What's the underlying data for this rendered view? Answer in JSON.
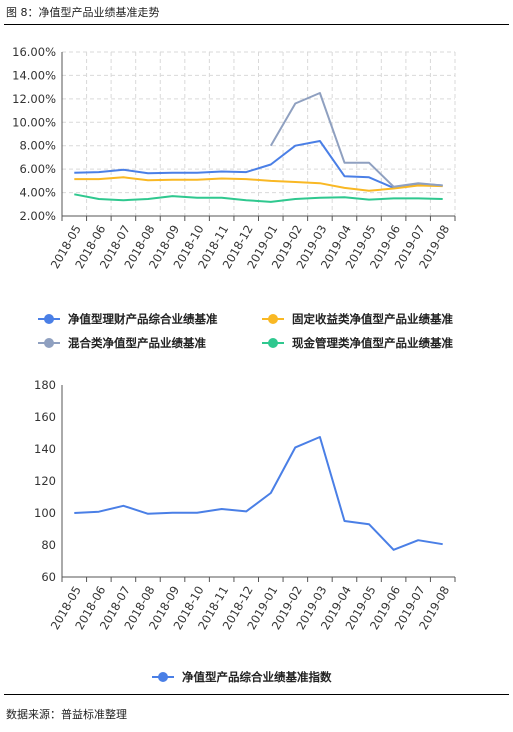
{
  "figure": {
    "title": "图 8：净值型产品业绩基准走势",
    "source": "数据来源：普益标准整理"
  },
  "chart_data": [
    {
      "type": "line",
      "categories": [
        "2018-05",
        "2018-06",
        "2018-07",
        "2018-08",
        "2018-09",
        "2018-10",
        "2018-11",
        "2018-12",
        "2019-01",
        "2019-02",
        "2019-03",
        "2019-04",
        "2019-05",
        "2019-06",
        "2019-07",
        "2019-08"
      ],
      "ylim": [
        2,
        16
      ],
      "yticks": [
        "2.00%",
        "4.00%",
        "6.00%",
        "8.00%",
        "10.00%",
        "12.00%",
        "14.00%",
        "16.00%"
      ],
      "ytick_values": [
        2,
        4,
        6,
        8,
        10,
        12,
        14,
        16
      ],
      "grid": true,
      "legend_position": "bottom",
      "series": [
        {
          "name": "净值型理财产品综合业绩基准",
          "color": "#4a7fe6",
          "values": [
            5.7,
            5.75,
            5.95,
            5.65,
            5.7,
            5.7,
            5.8,
            5.75,
            6.4,
            8.0,
            8.4,
            5.4,
            5.3,
            4.4,
            4.75,
            4.6
          ]
        },
        {
          "name": "固定收益类净值型产品业绩基准",
          "color": "#f9b824",
          "values": [
            5.15,
            5.15,
            5.3,
            5.05,
            5.1,
            5.1,
            5.2,
            5.15,
            5.0,
            4.9,
            4.8,
            4.4,
            4.15,
            4.35,
            4.6,
            4.55
          ]
        },
        {
          "name": "混合类净值型产品业绩基准",
          "color": "#8fa0c0",
          "values": [
            null,
            null,
            null,
            null,
            null,
            null,
            null,
            null,
            8.0,
            11.6,
            12.5,
            6.55,
            6.55,
            4.5,
            4.8,
            4.6
          ]
        },
        {
          "name": "现金管理类净值型产品业绩基准",
          "color": "#2fc88f",
          "values": [
            3.85,
            3.45,
            3.35,
            3.45,
            3.7,
            3.55,
            3.55,
            3.35,
            3.2,
            3.45,
            3.55,
            3.6,
            3.4,
            3.5,
            3.5,
            3.45
          ]
        }
      ]
    },
    {
      "type": "line",
      "categories": [
        "2018-05",
        "2018-06",
        "2018-07",
        "2018-08",
        "2018-09",
        "2018-10",
        "2018-11",
        "2018-12",
        "2019-01",
        "2019-02",
        "2019-03",
        "2019-04",
        "2019-05",
        "2019-06",
        "2019-07",
        "2019-08"
      ],
      "ylim": [
        60,
        180
      ],
      "yticks": [
        "60",
        "80",
        "100",
        "120",
        "140",
        "160",
        "180"
      ],
      "ytick_values": [
        60,
        80,
        100,
        120,
        140,
        160,
        180
      ],
      "grid": false,
      "legend_position": "bottom",
      "series": [
        {
          "name": "净值型产品综合业绩基准指数",
          "color": "#4a7fe6",
          "values": [
            100,
            100.8,
            104.5,
            99.5,
            100.2,
            100.2,
            102.5,
            101,
            112.5,
            141,
            147.5,
            95,
            93,
            77,
            83,
            80.5
          ]
        }
      ]
    }
  ]
}
